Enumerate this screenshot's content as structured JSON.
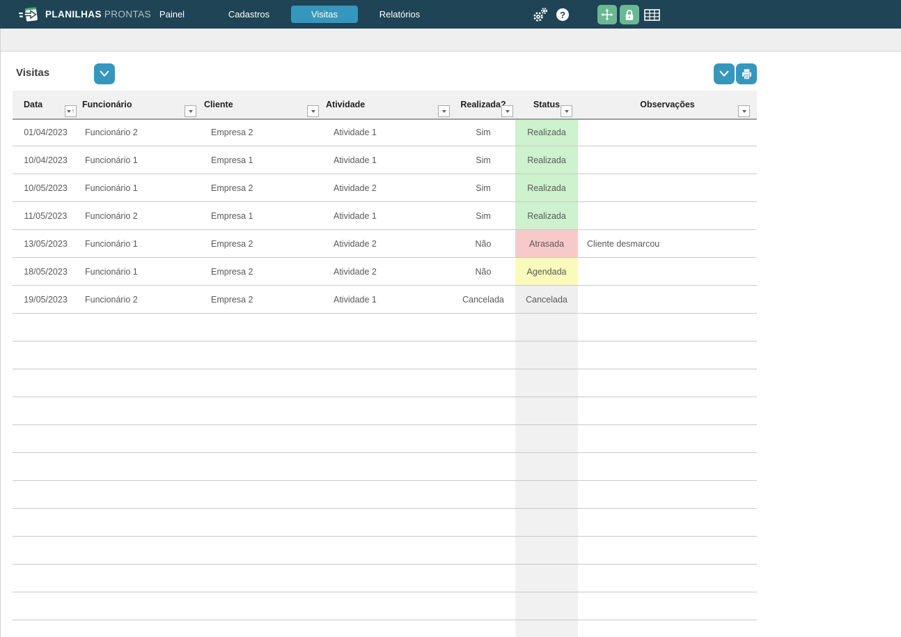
{
  "topbar": {
    "brand_bold": "PLANILHAS",
    "brand_light": "PRONTAS",
    "nav": [
      {
        "label": "Painel",
        "active": false
      },
      {
        "label": "Cadastros",
        "active": false
      },
      {
        "label": "Visitas",
        "active": true
      },
      {
        "label": "Relatórios",
        "active": false
      }
    ],
    "help_glyph": "?",
    "icons": [
      "settings-gears",
      "help",
      "move",
      "lock",
      "spreadsheet-grid"
    ]
  },
  "page": {
    "title": "Visitas"
  },
  "toolbar_icons": {
    "title_button": "chevron-down",
    "table_button": "chevron-down",
    "print_button": "printer"
  },
  "table": {
    "columns": [
      {
        "label": "Data",
        "sorted": true
      },
      {
        "label": "Funcionário"
      },
      {
        "label": "Cliente"
      },
      {
        "label": "Atividade"
      },
      {
        "label": "Realizada?"
      },
      {
        "label": "Status"
      },
      {
        "label": "Observações"
      }
    ],
    "rows": [
      {
        "data": "01/04/2023",
        "funcionario": "Funcionário 2",
        "cliente": "Empresa 2",
        "atividade": "Atividade 1",
        "realizada": "Sim",
        "status": "Realizada",
        "status_type": "realizada",
        "observacoes": ""
      },
      {
        "data": "10/04/2023",
        "funcionario": "Funcionário 1",
        "cliente": "Empresa 1",
        "atividade": "Atividade 1",
        "realizada": "Sim",
        "status": "Realizada",
        "status_type": "realizada",
        "observacoes": ""
      },
      {
        "data": "10/05/2023",
        "funcionario": "Funcionário 1",
        "cliente": "Empresa 2",
        "atividade": "Atividade 2",
        "realizada": "Sim",
        "status": "Realizada",
        "status_type": "realizada",
        "observacoes": ""
      },
      {
        "data": "11/05/2023",
        "funcionario": "Funcionário 2",
        "cliente": "Empresa 1",
        "atividade": "Atividade 1",
        "realizada": "Sim",
        "status": "Realizada",
        "status_type": "realizada",
        "observacoes": ""
      },
      {
        "data": "13/05/2023",
        "funcionario": "Funcionário 1",
        "cliente": "Empresa 2",
        "atividade": "Atividade 2",
        "realizada": "Não",
        "status": "Atrasada",
        "status_type": "atrasada",
        "observacoes": "Cliente desmarcou"
      },
      {
        "data": "18/05/2023",
        "funcionario": "Funcionário 1",
        "cliente": "Empresa 2",
        "atividade": "Atividade 2",
        "realizada": "Não",
        "status": "Agendada",
        "status_type": "agendada",
        "observacoes": ""
      },
      {
        "data": "19/05/2023",
        "funcionario": "Funcionário 2",
        "cliente": "Empresa 2",
        "atividade": "Atividade 1",
        "realizada": "Cancelada",
        "status": "Cancelada",
        "status_type": "cancelada",
        "observacoes": ""
      }
    ],
    "empty_row_count": 12,
    "status_colors": {
      "realizada": "#cdf2cd",
      "atrasada": "#f8c9c9",
      "agendada": "#fafabb",
      "cancelada": "#efefef"
    }
  },
  "colors": {
    "topbar_bg": "#1e4456",
    "accent_blue": "#3697be",
    "accent_green": "#6cb893",
    "header_bg": "#f1f1f2",
    "row_line": "#c9c9c9",
    "cell_text": "#595959",
    "status_strip": "#f1f1f1"
  }
}
